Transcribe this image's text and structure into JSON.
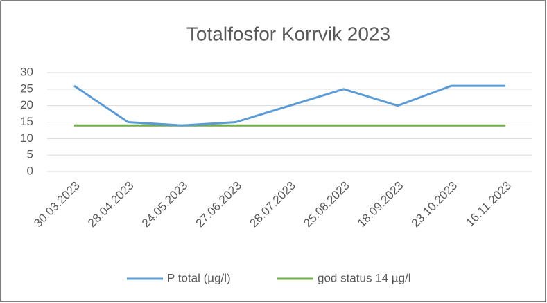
{
  "chart_data": {
    "type": "line",
    "title": "Totalfosfor Korrvik 2023",
    "categories": [
      "30.03.2023",
      "28.04.2023",
      "24.05.2023",
      "27.06.2023",
      "28.07.2023",
      "25.08.2023",
      "18.09.2023",
      "23.10.2023",
      "16.11.2023"
    ],
    "series": [
      {
        "name": "P total (µg/l)",
        "color": "#5b9bd5",
        "values": [
          26,
          15,
          14,
          15,
          20,
          25,
          20,
          26,
          26
        ]
      },
      {
        "name": "god status 14 µg/l",
        "color": "#70ad47",
        "values": [
          14,
          14,
          14,
          14,
          14,
          14,
          14,
          14,
          14
        ]
      }
    ],
    "ylim": [
      0,
      30
    ],
    "yticks": [
      0,
      5,
      10,
      15,
      20,
      25,
      30
    ],
    "grid": true,
    "legend": "bottom"
  }
}
